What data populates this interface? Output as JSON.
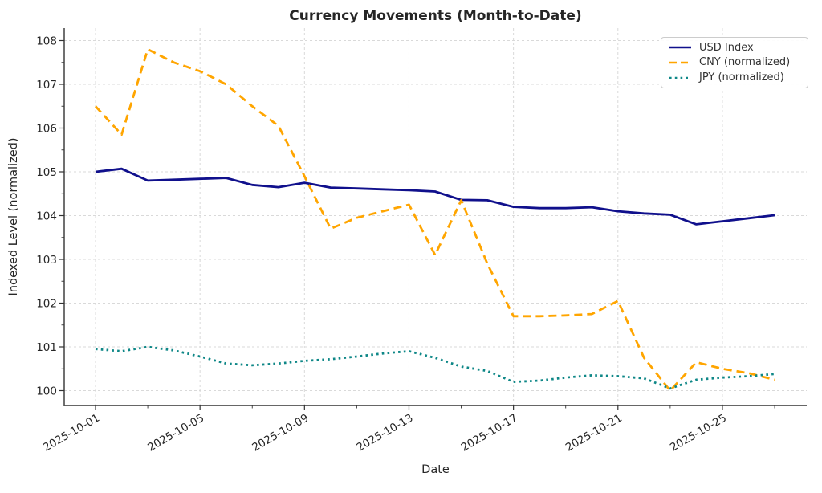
{
  "chart_data": {
    "type": "line",
    "title": "Currency Movements (Month-to-Date)",
    "xlabel": "Date",
    "ylabel": "Indexed Level (normalized)",
    "grid": true,
    "legend_position": "upper right",
    "ylim": [
      99.65,
      108.3
    ],
    "y_ticks": [
      100,
      101,
      102,
      103,
      104,
      105,
      106,
      107,
      108
    ],
    "x_tick_labels": [
      "2025-10-01",
      "2025-10-05",
      "2025-10-09",
      "2025-10-13",
      "2025-10-17",
      "2025-10-21",
      "2025-10-25"
    ],
    "x_major_days": [
      0,
      4,
      8,
      12,
      16,
      20,
      24
    ],
    "x_minor_days": [
      2,
      6,
      10,
      14,
      18,
      22,
      26
    ],
    "dates": [
      "2025-10-01",
      "2025-10-02",
      "2025-10-03",
      "2025-10-04",
      "2025-10-05",
      "2025-10-06",
      "2025-10-07",
      "2025-10-08",
      "2025-10-09",
      "2025-10-10",
      "2025-10-11",
      "2025-10-12",
      "2025-10-13",
      "2025-10-14",
      "2025-10-15",
      "2025-10-16",
      "2025-10-17",
      "2025-10-18",
      "2025-10-19",
      "2025-10-20",
      "2025-10-21",
      "2025-10-22",
      "2025-10-23",
      "2025-10-24",
      "2025-10-25",
      "2025-10-26",
      "2025-10-27"
    ],
    "series": [
      {
        "name": "USD Index",
        "color": "#10108c",
        "style": "solid",
        "values": [
          105.0,
          105.07,
          104.8,
          104.82,
          104.84,
          104.86,
          104.7,
          104.65,
          104.75,
          104.64,
          104.62,
          104.6,
          104.58,
          104.55,
          104.36,
          104.35,
          104.2,
          104.17,
          104.17,
          104.19,
          104.1,
          104.05,
          104.02,
          103.8,
          103.87,
          103.94,
          104.01
        ]
      },
      {
        "name": "CNY (normalized)",
        "color": "#ffa500",
        "style": "dashed",
        "values": [
          106.5,
          105.85,
          107.8,
          107.5,
          107.3,
          107.0,
          106.5,
          106.05,
          104.9,
          103.7,
          103.95,
          104.1,
          104.25,
          103.1,
          104.35,
          102.9,
          101.7,
          101.7,
          101.72,
          101.75,
          102.05,
          100.75,
          100.0,
          100.65,
          100.5,
          100.4,
          100.25
        ]
      },
      {
        "name": "JPY (normalized)",
        "color": "#0e8787",
        "style": "dotted",
        "values": [
          100.95,
          100.9,
          101.0,
          100.92,
          100.78,
          100.62,
          100.58,
          100.62,
          100.68,
          100.72,
          100.78,
          100.85,
          100.9,
          100.75,
          100.55,
          100.45,
          100.2,
          100.23,
          100.3,
          100.35,
          100.33,
          100.28,
          100.05,
          100.25,
          100.3,
          100.33,
          100.38
        ]
      }
    ]
  }
}
